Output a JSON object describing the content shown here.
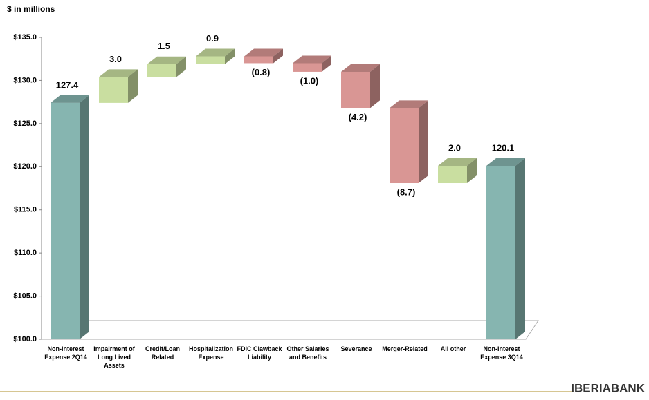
{
  "chart_data": {
    "type": "waterfall",
    "y_axis_label": "$ in millions",
    "categories": [
      "Non-Interest Expense 2Q14",
      "Impairment of Long Lived Assets",
      "Credit/Loan Related",
      "Hospitalization Expense",
      "FDIC Clawback Liability",
      "Other Salaries and Benefits",
      "Severance",
      "Merger-Related",
      "All other",
      "Non-Interest Expense 3Q14"
    ],
    "values": [
      127.4,
      3.0,
      1.5,
      0.9,
      -0.8,
      -1.0,
      -4.2,
      -8.7,
      2.0,
      120.1
    ],
    "value_labels": [
      "127.4",
      "3.0",
      "1.5",
      "0.9",
      "(0.8)",
      "(1.0)",
      "(4.2)",
      "(8.7)",
      "2.0",
      "120.1"
    ],
    "colors": {
      "total": "#86b5b0",
      "increase": "#c9dea0",
      "decrease": "#d99694"
    },
    "ylim": [
      100,
      135
    ],
    "yticks": [
      {
        "value": 100,
        "label": "$100.0"
      },
      {
        "value": 105,
        "label": "$105.0"
      },
      {
        "value": 110,
        "label": "$110.0"
      },
      {
        "value": 115,
        "label": "$115.0"
      },
      {
        "value": 120,
        "label": "$120.0"
      },
      {
        "value": 125,
        "label": "$125.0"
      },
      {
        "value": 130,
        "label": "$130.0"
      },
      {
        "value": 135,
        "label": "$135.0"
      }
    ]
  },
  "logo": "IBERIABANK"
}
